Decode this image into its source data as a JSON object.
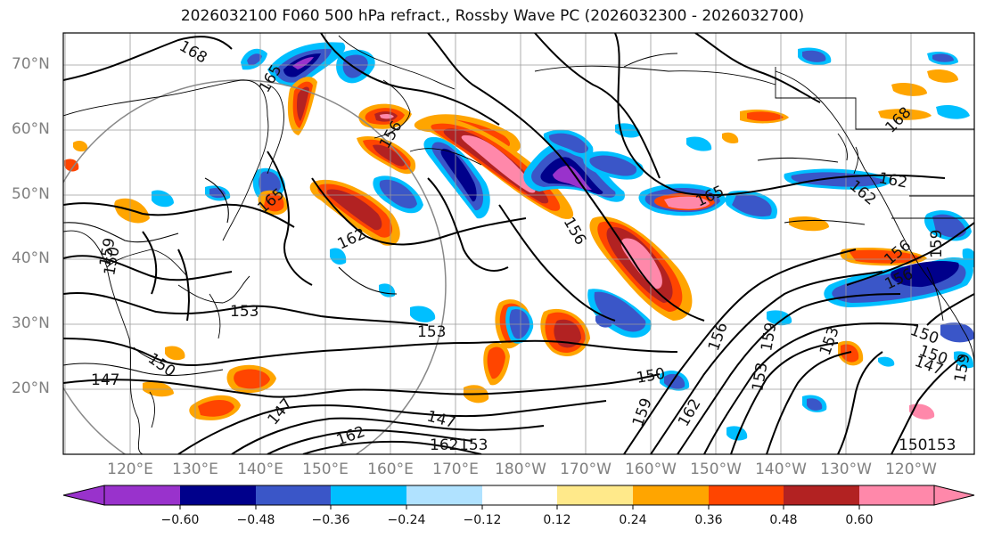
{
  "title": "2026032100 F060 500 hPa refract., Rossby Wave PC (2026032300 - 2026032700)",
  "lat_labels": [
    "70°N",
    "60°N",
    "50°N",
    "40°N",
    "30°N",
    "20°N"
  ],
  "lon_labels": [
    "120°E",
    "130°E",
    "140°E",
    "150°E",
    "160°E",
    "170°E",
    "180°W",
    "170°W",
    "160°W",
    "150°W",
    "140°W",
    "130°W",
    "120°W"
  ],
  "colorbar": {
    "colors": [
      "#9932cc",
      "#00008b",
      "#3a56c8",
      "#00bfff",
      "#b0e2ff",
      "#ffffff",
      "#ffe98a",
      "#ffa500",
      "#ff4500",
      "#b22222",
      "#ff88aa"
    ],
    "ticks": [
      "−0.60",
      "−0.48",
      "−0.36",
      "−0.24",
      "−0.12",
      "0.12",
      "0.24",
      "0.36",
      "0.48",
      "0.60"
    ]
  },
  "contour_labels": [
    "168",
    "165",
    "165",
    "162",
    "159",
    "156",
    "153",
    "153",
    "150",
    "150",
    "147",
    "147",
    "147",
    "150",
    "162",
    "159",
    "156",
    "153",
    "165",
    "162",
    "168",
    "162",
    "156",
    "159",
    "156",
    "150",
    "147",
    "159",
    "162",
    "153",
    "150",
    "153",
    "156",
    "159",
    "162",
    "150",
    "153"
  ]
}
